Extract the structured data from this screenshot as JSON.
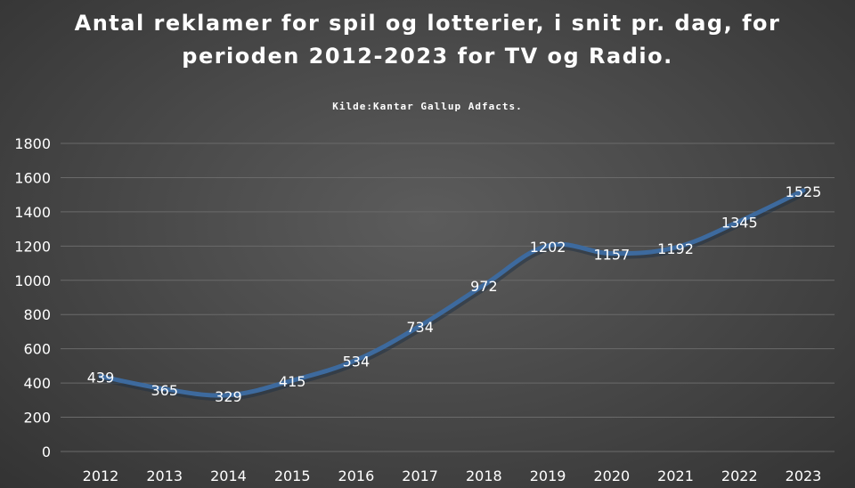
{
  "colors": {
    "background": "#4a4a4a",
    "line": "#3d6a9e",
    "gridline": "#6a6a6a",
    "text": "#ffffff"
  },
  "chart_data": {
    "type": "line",
    "title_line1": "Antal reklamer for spil og lotterier, i snit pr. dag, for",
    "title_line2": "perioden 2012-2023 for TV og Radio.",
    "subtitle": "Kilde:Kantar Gallup Adfacts.",
    "categories": [
      "2012",
      "2013",
      "2014",
      "2015",
      "2016",
      "2017",
      "2018",
      "2019",
      "2020",
      "2021",
      "2022",
      "2023"
    ],
    "values": [
      439,
      365,
      329,
      415,
      534,
      734,
      972,
      1202,
      1157,
      1192,
      1345,
      1525
    ],
    "ylim": [
      0,
      1800
    ],
    "yticks": [
      0,
      200,
      400,
      600,
      800,
      1000,
      1200,
      1400,
      1600,
      1800
    ],
    "grid": true,
    "legend": "none",
    "data_labels": true
  }
}
